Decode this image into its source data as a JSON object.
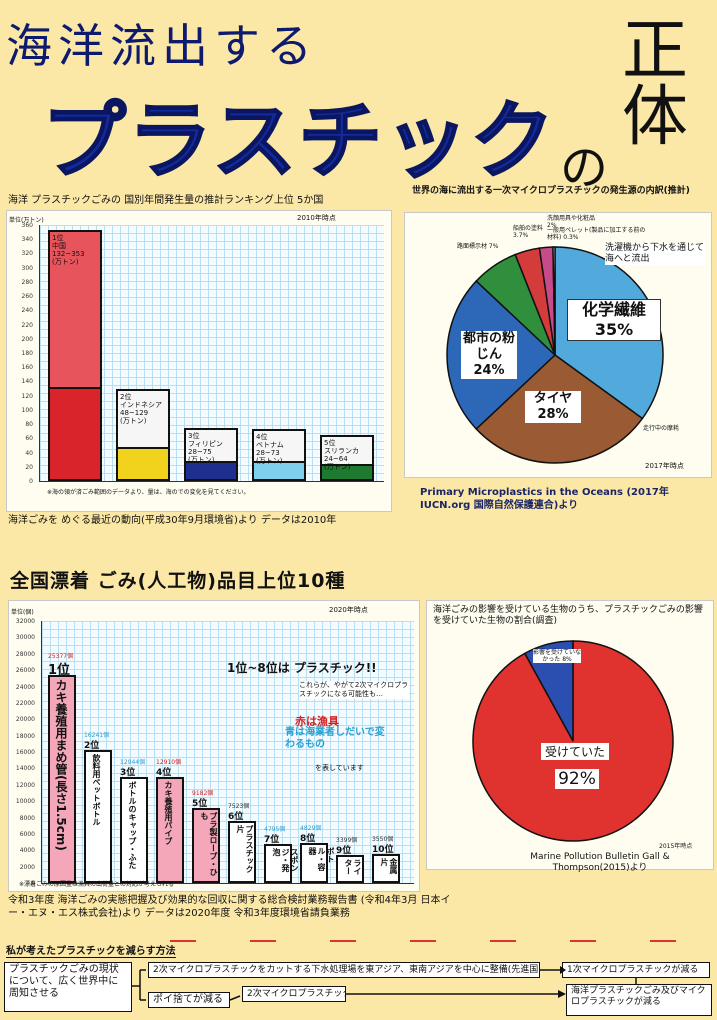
{
  "title": {
    "line1": "海洋流出する",
    "line2": "プラスチック",
    "no": "の",
    "identity": "正体"
  },
  "chart1": {
    "caption": "海洋 プラスチックごみの 国別年間発生量の推計ランキング上位 5か国",
    "year_note": "2010年時点",
    "unit": "単位(万トン)",
    "note": "※海の領が済ごみ範囲のデータより、量は、海のでの変化を見てください。",
    "source": "海洋ごみを めぐる最近の動向(平成30年9月環境省)より データは2010年",
    "labels": [
      "1位\n中国\n132~353\n(万トン)",
      "2位\nインドネシア\n48~129\n(万トン)",
      "3位\nフィリピン\n28~75\n(万トン)",
      "4位\nベトナム\n28~73\n(万トン)",
      "5位\nスリランカ\n24~64\n(万トン)"
    ],
    "ticks": [
      "360",
      "340",
      "320",
      "300",
      "280",
      "260",
      "240",
      "220",
      "200",
      "180",
      "160",
      "140",
      "120",
      "100",
      "80",
      "60",
      "40",
      "20",
      "0"
    ]
  },
  "chart2": {
    "caption": "世界の海に流出する一次マイクロプラスチックの発生源の内訳(推計)",
    "labels": {
      "other": "洗顔用具や化粧品 2%",
      "pellet": "一般用ペレット(製品に加工する前の材料) 0.3%",
      "laundry": "洗濯機から下水を通じて海へと流出",
      "paint": "船舶の塗料 3.7%",
      "road": "路面標示材 7%",
      "synth": "化学繊維 35%",
      "dust": "都市の粉じん 24%",
      "tire": "タイヤ 28%",
      "tire_note": "走行中の摩耗",
      "year": "2017年時点"
    },
    "source": "Primary Microplastics in the Oceans (2017年 IUCN.org 国際自然保護連合)より"
  },
  "chart3": {
    "heading": "全国漂着 ごみ(人工物)品目上位10種",
    "year_note": "2020年時点",
    "unit": "単位(個)",
    "top_note": "1位~8位は プラスチック!!",
    "sub_note": "これらが、やがて2次マイクロプラスチックになる可能性も…",
    "red_note": "赤は漁具",
    "blue_note": "青は海業者しだいで変わるもの",
    "small_note": "を表しています",
    "footnote": "※漂着ごみの原因量は漁具の出荷量との対応が考えられる",
    "source": "令和3年度 海洋ごみの実態把握及び効果的な回収に関する総合検討業務報告書 (令和4年3月 日本イー・エヌ・エス株式会社)より データは2020年度 令和3年度環境省請負業務",
    "ranks": [
      "1位",
      "2位",
      "3位",
      "4位",
      "5位",
      "6位",
      "7位",
      "8位",
      "9位",
      "10位"
    ],
    "counts": [
      "25377個",
      "16241個",
      "12944個",
      "12910個",
      "9182個",
      "7523個",
      "4795個",
      "4829個",
      "3399個",
      "3550個"
    ],
    "items": [
      "カキ養殖用まめ管(長さ1.5cm)",
      "飲料用ペットボトル",
      "ボトルのキャップ・ふた",
      "カキ養殖用パイプ",
      "プラ製ロープ・ひも",
      "プラスチック片",
      "ブイ・スポンジ・発泡",
      "ボトル・容器",
      "ライター",
      "金属片"
    ],
    "ticks": [
      "32000",
      "30000",
      "28000",
      "26000",
      "24000",
      "22000",
      "20000",
      "18000",
      "16000",
      "14000",
      "12000",
      "10000",
      "8000",
      "6000",
      "4000",
      "2000",
      "0"
    ]
  },
  "chart4": {
    "caption": "海洋ごみの影響を受けている生物のうち、プラスチックごみの影響を受けていた生物の割合(調査)",
    "small_label": "影響を受けていなかった 8%",
    "big_label": "受けていた",
    "big_pct": "92%",
    "year": "2015年時点",
    "source": "Marine Pollution Bulletin Gall & Thompson(2015)より"
  },
  "flow": {
    "heading": "私が考えたプラスチックを減らす方法",
    "start": "プラスチックごみの現状について、広く世界中に周知させる",
    "step1": "2次マイクロプラスチックをカットする下水処理場を東アジア、東南アジアを中心に整備(先進国も協力する)",
    "result1": "1次マイクロプラスチックが減る",
    "step2": "ポイ捨てが減る",
    "result2": "2次マイクロプラスチックが減る",
    "result3": "海洋プラスチックごみ及びマイクロプラスチックが減る"
  },
  "chart_data": [
    {
      "type": "bar",
      "title": "海洋 プラスチックごみの 国別年間発生量の推計ランキング上位 5か国",
      "ylabel": "単位(万トン)",
      "categories": [
        "中国",
        "インドネシア",
        "フィリピン",
        "ベトナム",
        "スリランカ"
      ],
      "series": [
        {
          "name": "low",
          "values": [
            132,
            48,
            28,
            28,
            24
          ]
        },
        {
          "name": "high",
          "values": [
            353,
            129,
            75,
            73,
            64
          ]
        }
      ],
      "ylim": [
        0,
        360
      ]
    },
    {
      "type": "pie",
      "title": "世界の海に流出する一次マイクロプラスチックの発生源の内訳",
      "categories": [
        "化学繊維",
        "タイヤ",
        "都市の粉じん",
        "路面標示材",
        "船舶の塗料",
        "洗顔用具や化粧品",
        "一般用ペレット"
      ],
      "values": [
        35,
        28,
        24,
        7,
        3.7,
        2,
        0.3
      ],
      "colors": [
        "#52a9dc",
        "#9a5a33",
        "#2d67b8",
        "#2f8f3c",
        "#d43b3b",
        "#c74a8a",
        "#e6e6e6"
      ]
    },
    {
      "type": "bar",
      "title": "全国漂着 ごみ(人工物)品目上位10種",
      "ylabel": "単位(個)",
      "categories": [
        "1位",
        "2位",
        "3位",
        "4位",
        "5位",
        "6位",
        "7位",
        "8位",
        "9位",
        "10位"
      ],
      "values": [
        25377,
        16241,
        12944,
        12910,
        9182,
        7523,
        4795,
        4829,
        3399,
        3550
      ],
      "ylim": [
        0,
        32000
      ]
    },
    {
      "type": "pie",
      "title": "プラスチックごみの影響を受けていた生物の割合",
      "categories": [
        "受けていた",
        "影響を受けていなかった"
      ],
      "values": [
        92,
        8
      ],
      "colors": [
        "#e0322e",
        "#2a4fb0"
      ]
    }
  ]
}
